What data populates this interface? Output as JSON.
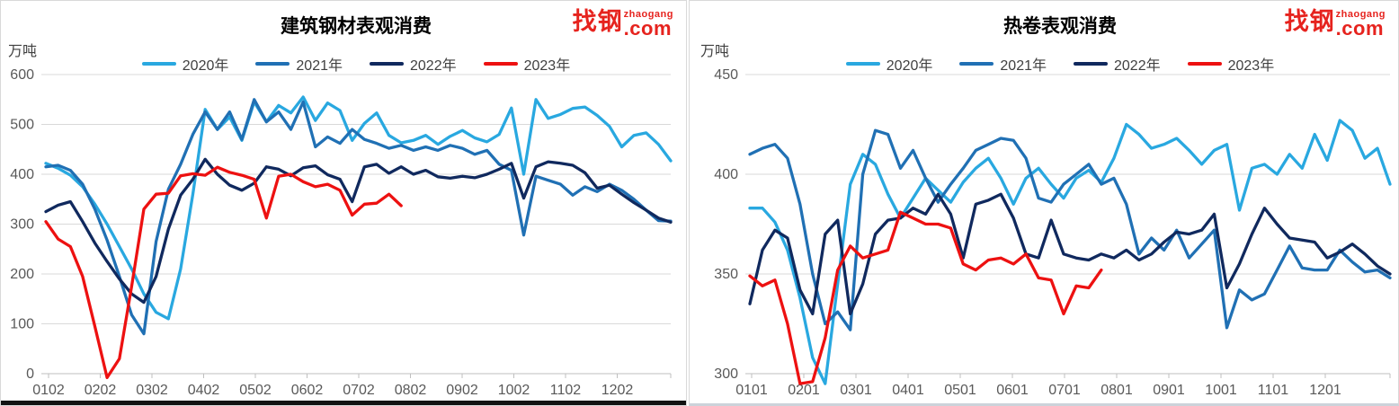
{
  "logo": {
    "brand": "找钢",
    "superscript": "zhaogang",
    "suffix": ".com",
    "color": "#e6231e"
  },
  "chart_data": [
    {
      "type": "line",
      "title": "建筑钢材表观消费",
      "unit_label": "万吨",
      "ylabel": "万吨",
      "ylim": [
        0,
        600
      ],
      "ytick_step": 100,
      "grid": "horizontal",
      "legend_position": "top",
      "x_labels": [
        "0102",
        "0202",
        "0302",
        "0402",
        "0502",
        "0602",
        "0702",
        "0802",
        "0902",
        "1002",
        "1102",
        "1202"
      ],
      "series": [
        {
          "name": "2020年",
          "color": "#29a8e0",
          "values": [
            422,
            412,
            398,
            375,
            340,
            300,
            255,
            210,
            160,
            123,
            110,
            210,
            360,
            530,
            490,
            515,
            468,
            545,
            505,
            538,
            523,
            555,
            508,
            543,
            528,
            468,
            502,
            523,
            478,
            463,
            468,
            478,
            460,
            476,
            488,
            473,
            465,
            480,
            533,
            400,
            550,
            512,
            520,
            532,
            535,
            518,
            496,
            455,
            478,
            483,
            460,
            427
          ]
        },
        {
          "name": "2021年",
          "color": "#2070b4",
          "values": [
            415,
            418,
            408,
            380,
            330,
            268,
            195,
            118,
            80,
            265,
            370,
            420,
            480,
            525,
            490,
            525,
            470,
            550,
            505,
            525,
            490,
            545,
            455,
            475,
            462,
            490,
            470,
            462,
            452,
            458,
            448,
            455,
            448,
            458,
            452,
            440,
            448,
            420,
            408,
            278,
            396,
            388,
            380,
            358,
            375,
            365,
            380,
            368,
            350,
            328,
            307,
            306
          ]
        },
        {
          "name": "2022年",
          "color": "#10295e",
          "values": [
            325,
            338,
            345,
            305,
            262,
            225,
            190,
            160,
            143,
            195,
            290,
            358,
            390,
            430,
            400,
            378,
            368,
            382,
            415,
            410,
            397,
            413,
            417,
            399,
            390,
            345,
            415,
            420,
            402,
            415,
            400,
            408,
            395,
            392,
            396,
            393,
            400,
            410,
            422,
            352,
            415,
            425,
            422,
            418,
            403,
            372,
            378,
            360,
            343,
            328,
            312,
            304
          ]
        },
        {
          "name": "2023年",
          "color": "#ed1111",
          "values": [
            305,
            270,
            255,
            195,
            95,
            -8,
            30,
            175,
            330,
            360,
            362,
            397,
            401,
            398,
            414,
            404,
            398,
            390,
            312,
            396,
            400,
            385,
            375,
            380,
            368,
            318,
            340,
            342,
            360,
            337
          ]
        }
      ]
    },
    {
      "type": "line",
      "title": "热卷表观消费",
      "unit_label": "万吨",
      "ylabel": "万吨",
      "ylim": [
        300,
        450
      ],
      "ytick_step": 50,
      "grid": "horizontal",
      "legend_position": "top",
      "x_labels": [
        "0101",
        "0201",
        "0301",
        "0401",
        "0501",
        "0601",
        "0701",
        "0801",
        "0901",
        "1001",
        "1101",
        "1201"
      ],
      "series": [
        {
          "name": "2020年",
          "color": "#29a8e0",
          "values": [
            383,
            383,
            376,
            362,
            338,
            308,
            295,
            345,
            395,
            410,
            405,
            390,
            378,
            388,
            398,
            392,
            386,
            396,
            403,
            408,
            398,
            385,
            398,
            403,
            395,
            388,
            398,
            402,
            396,
            408,
            425,
            420,
            413,
            415,
            418,
            412,
            405,
            412,
            415,
            382,
            403,
            405,
            400,
            410,
            403,
            420,
            407,
            427,
            422,
            408,
            413,
            395
          ]
        },
        {
          "name": "2021年",
          "color": "#2070b4",
          "values": [
            410,
            413,
            415,
            408,
            385,
            350,
            325,
            331,
            322,
            400,
            422,
            420,
            403,
            412,
            398,
            386,
            395,
            403,
            412,
            415,
            418,
            417,
            408,
            388,
            386,
            395,
            400,
            405,
            395,
            398,
            385,
            360,
            368,
            362,
            372,
            358,
            365,
            372,
            323,
            342,
            337,
            340,
            352,
            364,
            353,
            352,
            352,
            362,
            356,
            351,
            352,
            348
          ]
        },
        {
          "name": "2022年",
          "color": "#10295e",
          "values": [
            335,
            362,
            372,
            368,
            342,
            330,
            370,
            377,
            330,
            345,
            370,
            377,
            378,
            383,
            380,
            390,
            380,
            358,
            385,
            387,
            390,
            378,
            360,
            358,
            377,
            360,
            358,
            357,
            360,
            358,
            362,
            357,
            360,
            366,
            371,
            370,
            372,
            380,
            343,
            355,
            370,
            383,
            375,
            368,
            367,
            366,
            358,
            361,
            365,
            360,
            354,
            350
          ]
        },
        {
          "name": "2023年",
          "color": "#ed1111",
          "values": [
            349,
            344,
            347,
            325,
            295,
            296,
            318,
            352,
            364,
            358,
            360,
            362,
            381,
            378,
            375,
            375,
            373,
            355,
            352,
            357,
            358,
            355,
            360,
            348,
            347,
            330,
            344,
            343,
            352
          ]
        }
      ]
    }
  ]
}
